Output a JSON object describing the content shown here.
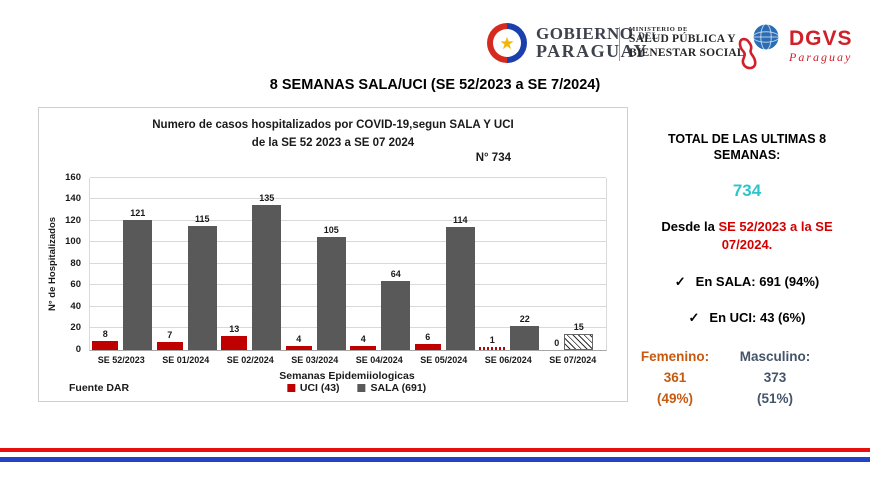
{
  "header": {
    "gov_logo": {
      "line1": "GOBIERNO",
      "line1_small": "DEL",
      "line2": "PARAGUAY"
    },
    "ministry": {
      "tiny": "MINISTERIO DE",
      "line1": "SALUD PÚBLICA Y",
      "line2": "BIENESTAR SOCIAL"
    },
    "dgvs": {
      "name": "DGVS",
      "script": "Paraguay"
    }
  },
  "title": {
    "main": "8 SEMANAS SALA/UCI  (SE 52/2023 a SE 7/2024)"
  },
  "chart_data": {
    "type": "bar",
    "title": "Numero de casos hospitalizados por COVID-19,segun SALA Y UCI de la SE 52 2023 a SE 07 2024",
    "title_lines": [
      "Numero de casos hospitalizados por COVID-19,segun SALA Y UCI",
      "de la SE 52 2023 a SE 07 2024"
    ],
    "categories": [
      "SE 52/2023",
      "SE 01/2024",
      "SE 02/2024",
      "SE 03/2024",
      "SE 04/2024",
      "SE 05/2024",
      "SE 06/2024",
      "SE 07/2024"
    ],
    "series": [
      {
        "key": "uci",
        "name": "UCI (43)",
        "color": "#c00000",
        "values": [
          8,
          7,
          13,
          4,
          4,
          6,
          1,
          0
        ],
        "hatch": [
          6
        ]
      },
      {
        "key": "sala",
        "name": "SALA (691)",
        "color": "#595959",
        "values": [
          121,
          115,
          135,
          105,
          64,
          114,
          22,
          15
        ],
        "hatch": [
          7
        ]
      }
    ],
    "xlabel": "Semanas Epidemiiologicas",
    "ylabel": "N° de Hospitalizados",
    "ylim": [
      0,
      160
    ],
    "yticks": [
      0,
      20,
      40,
      60,
      80,
      100,
      120,
      140,
      160
    ],
    "grid": true,
    "legend_position": "bottom",
    "annotations": {
      "n_label": "N° 734",
      "source": "Fuente DAR"
    }
  },
  "panel": {
    "total_line1": "TOTAL DE LAS ULTIMAS 8",
    "total_line2": "SEMANAS:",
    "total_value": "734",
    "desde_prefix": "Desde la ",
    "desde_red": "SE 52/2023 a la SE 07/2024.",
    "check_mark": "✓",
    "sala_text": "En SALA: 691 (94%)",
    "uci_text": "En UCI: 43 (6%)",
    "female": {
      "label": "Femenino:",
      "value": "361",
      "pct": "(49%)"
    },
    "male": {
      "label": "Masculino:",
      "value": "373",
      "pct": "(51%)"
    }
  },
  "colors": {
    "uci_bar": "#c00000",
    "sala_bar": "#595959",
    "total_value": "#2cc5cb",
    "desde_red": "#d40000",
    "female": "#c55a11",
    "male": "#44546a",
    "flag_red": "#e80f0f",
    "flag_blue": "#2342c4"
  }
}
